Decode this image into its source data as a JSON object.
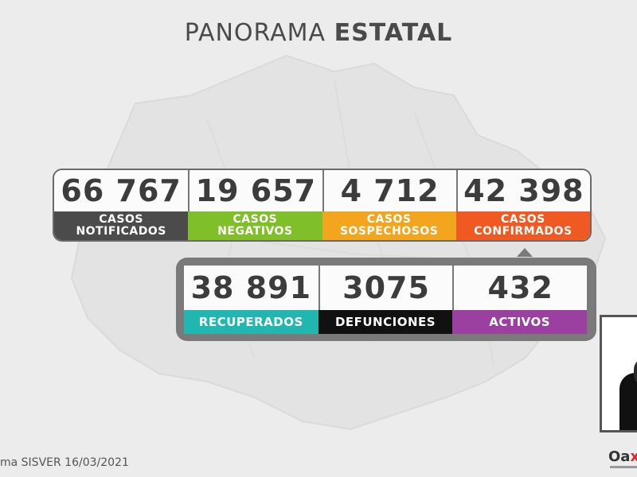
{
  "title": {
    "regular": "PANORAMA",
    "bold": "ESTATAL"
  },
  "top_stats": [
    {
      "value": "66 767",
      "label_line1": "CASOS",
      "label_line2": "NOTIFICADOS",
      "color": "#4b4b4b"
    },
    {
      "value": "19 657",
      "label_line1": "CASOS",
      "label_line2": "NEGATIVOS",
      "color": "#7fbf2a"
    },
    {
      "value": "4 712",
      "label_line1": "CASOS",
      "label_line2": "SOSPECHOSOS",
      "color": "#f2a51d"
    },
    {
      "value": "42 398",
      "label_line1": "CASOS",
      "label_line2": "CONFIRMADOS",
      "color": "#f05a22"
    }
  ],
  "bottom_stats": [
    {
      "value": "38 891",
      "label": "RECUPERADOS",
      "color": "#21b7b0"
    },
    {
      "value": "3075",
      "label": "DEFUNCIONES",
      "color": "#111111"
    },
    {
      "value": "432",
      "label": "ACTIVOS",
      "color": "#9b3fa0"
    }
  ],
  "footer": "ma SISVER 16/03/2021",
  "logo": {
    "text": "Oa",
    "accent": "x"
  },
  "colors": {
    "background": "#ececec",
    "map": "#e2e2e2"
  }
}
